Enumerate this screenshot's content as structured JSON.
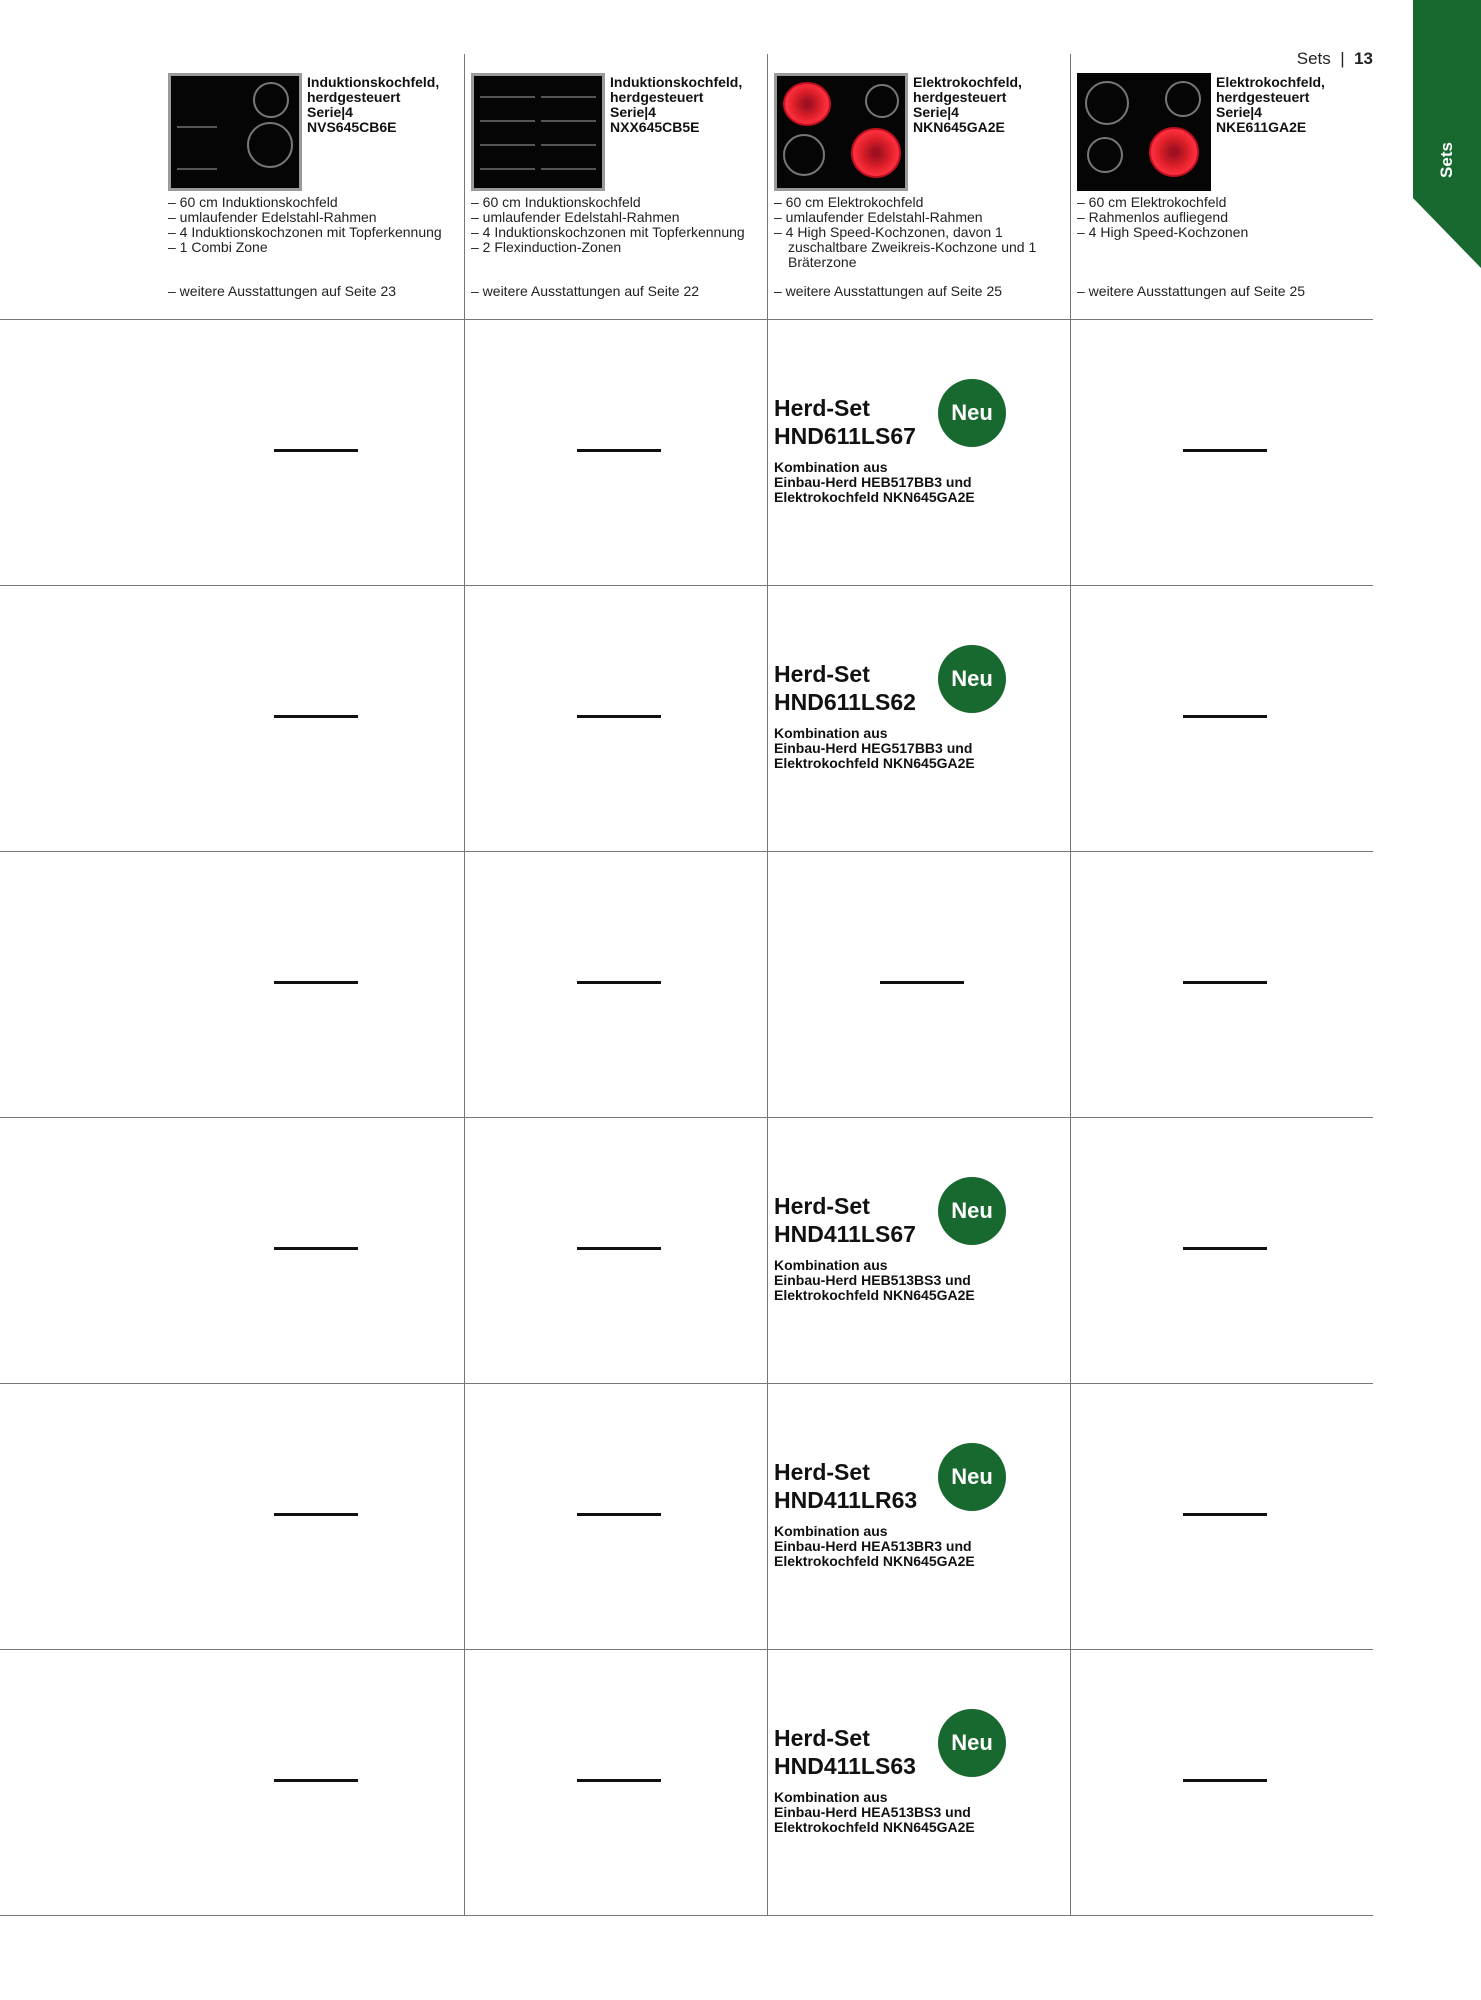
{
  "page": {
    "section": "Sets",
    "number": "13",
    "side_tab": "Sets"
  },
  "colors": {
    "brand_green": "#18692f",
    "hot_zone": "#e0202a"
  },
  "products": [
    {
      "title": "Induktionskochfeld,\nherdgesteuert\nSerie|4\nNVS645CB6E",
      "features": [
        "– 60 cm Induktionskochfeld",
        "– umlaufender Edelstahl-Rahmen",
        "– 4 Induktionskochzonen mit Topferkennung",
        "– 1 Combi Zone"
      ],
      "more": "– weitere Ausstattungen auf Seite 23"
    },
    {
      "title": "Induktionskochfeld,\nherdgesteuert\nSerie|4\nNXX645CB5E",
      "features": [
        "– 60 cm Induktionskochfeld",
        "– umlaufender Edelstahl-Rahmen",
        "– 4 Induktionskochzonen mit Topferkennung",
        "– 2 Flexinduction-Zonen"
      ],
      "more": "– weitere Ausstattungen auf Seite 22"
    },
    {
      "title": "Elektrokochfeld,\nherdgesteuert\nSerie|4\nNKN645GA2E",
      "features": [
        "– 60 cm  Elektrokochfeld",
        "– umlaufender Edelstahl-Rahmen",
        "– 4 High Speed-Kochzonen, davon 1 zuschaltbare Zweikreis-Kochzone und 1 Bräterzone"
      ],
      "more": "– weitere Ausstattungen auf Seite 25"
    },
    {
      "title": "Elektrokochfeld,\nherdgesteuert\nSerie|4\nNKE611GA2E",
      "features": [
        "– 60 cm Elektrokochfeld",
        "– Rahmenlos aufliegend",
        "– 4 High Speed-Kochzonen"
      ],
      "more": "– weitere Ausstattungen auf Seite 25"
    }
  ],
  "rows": [
    {
      "set": {
        "label": "Herd-Set",
        "model": "HND611LS67",
        "badge": "Neu",
        "desc1": "Kombination aus",
        "desc2": "Einbau-Herd HEB517BB3 und",
        "desc3": "Elektrokochfeld NKN645GA2E"
      }
    },
    {
      "set": {
        "label": "Herd-Set",
        "model": "HND611LS62",
        "badge": "Neu",
        "desc1": "Kombination aus",
        "desc2": "Einbau-Herd HEG517BB3 und",
        "desc3": "Elektrokochfeld NKN645GA2E"
      }
    },
    {
      "set": null
    },
    {
      "set": {
        "label": "Herd-Set",
        "model": "HND411LS67",
        "badge": "Neu",
        "desc1": "Kombination aus",
        "desc2": "Einbau-Herd HEB513BS3 und",
        "desc3": "Elektrokochfeld NKN645GA2E"
      }
    },
    {
      "set": {
        "label": "Herd-Set",
        "model": "HND411LR63",
        "badge": "Neu",
        "desc1": "Kombination aus",
        "desc2": "Einbau-Herd HEA513BR3 und",
        "desc3": "Elektrokochfeld NKN645GA2E"
      }
    },
    {
      "set": {
        "label": "Herd-Set",
        "model": "HND411LS63",
        "badge": "Neu",
        "desc1": "Kombination aus",
        "desc2": "Einbau-Herd HEA513BS3 und",
        "desc3": "Elektrokochfeld NKN645GA2E"
      }
    }
  ]
}
